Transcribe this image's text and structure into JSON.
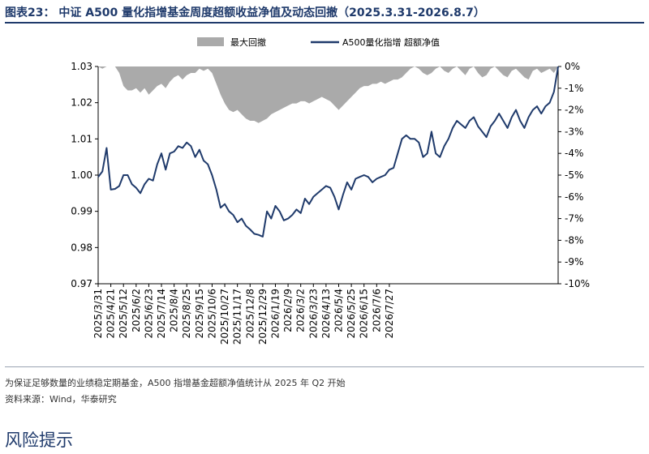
{
  "header": {
    "title": "图表23：  中证 A500 量化指增基金周度超额收益净值及动态回撤（2025.3.31-2026.8.7）"
  },
  "notes": {
    "line1": "为保证足够数量的业绩稳定期基金，A500 指增基金超额净值统计从 2025 年 Q2 开始",
    "line2": "资料来源：Wind，华泰研究"
  },
  "section": {
    "heading": "风险提示"
  },
  "colors": {
    "nav_line": "#1f3a6b",
    "drawdown_area": "#aaaaaa"
  },
  "chart_data": {
    "type": "line",
    "title": "",
    "xlabel": "",
    "ylabel": "",
    "grid": false,
    "legend_position": "top-center",
    "x_tick_labels": [
      "2025/3/31",
      "2025/4/21",
      "2025/5/12",
      "2025/6/2",
      "2025/6/23",
      "2025/7/14",
      "2025/8/4",
      "2025/8/25",
      "2025/9/15",
      "2025/10/6",
      "2025/10/27",
      "2025/11/17",
      "2025/12/8",
      "2025/12/29",
      "2026/1/19",
      "2026/2/9",
      "2026/3/2",
      "2026/3/23",
      "2026/4/13",
      "2026/5/4",
      "2026/5/25",
      "2026/6/15",
      "2026/7/6",
      "2026/7/27"
    ],
    "y_left": {
      "ylim": [
        0.97,
        1.03
      ],
      "ticks": [
        "0.97",
        "0.98",
        "0.99",
        "1.00",
        "1.01",
        "1.02",
        "1.03"
      ]
    },
    "y_right": {
      "ylim": [
        -10,
        0
      ],
      "unit": "%",
      "ticks": [
        "0%",
        "-1%",
        "-2%",
        "-3%",
        "-4%",
        "-5%",
        "-6%",
        "-7%",
        "-8%",
        "-9%",
        "-10%"
      ]
    },
    "series": [
      {
        "name": "最大回撤",
        "axis": "right",
        "kind": "area",
        "points": [
          [
            0,
            0
          ],
          [
            1,
            -0.1
          ],
          [
            2,
            0
          ],
          [
            3,
            0
          ],
          [
            4,
            0
          ],
          [
            5,
            -0.3
          ],
          [
            6,
            -0.9
          ],
          [
            7,
            -1.1
          ],
          [
            8,
            -1.1
          ],
          [
            9,
            -1.0
          ],
          [
            10,
            -1.2
          ],
          [
            11,
            -1.0
          ],
          [
            12,
            -1.3
          ],
          [
            13,
            -1.1
          ],
          [
            14,
            -0.9
          ],
          [
            15,
            -0.8
          ],
          [
            16,
            -1.0
          ],
          [
            17,
            -0.7
          ],
          [
            18,
            -0.5
          ],
          [
            19,
            -0.4
          ],
          [
            20,
            -0.6
          ],
          [
            21,
            -0.4
          ],
          [
            22,
            -0.3
          ],
          [
            23,
            -0.3
          ],
          [
            24,
            -0.1
          ],
          [
            25,
            -0.2
          ],
          [
            26,
            -0.1
          ],
          [
            27,
            -0.3
          ],
          [
            28,
            -0.8
          ],
          [
            29,
            -1.3
          ],
          [
            30,
            -1.7
          ],
          [
            31,
            -2.0
          ],
          [
            32,
            -2.1
          ],
          [
            33,
            -2.0
          ],
          [
            34,
            -2.2
          ],
          [
            35,
            -2.4
          ],
          [
            36,
            -2.5
          ],
          [
            37,
            -2.5
          ],
          [
            38,
            -2.6
          ],
          [
            39,
            -2.5
          ],
          [
            40,
            -2.4
          ],
          [
            41,
            -2.2
          ],
          [
            42,
            -2.1
          ],
          [
            43,
            -2.0
          ],
          [
            44,
            -1.9
          ],
          [
            45,
            -1.8
          ],
          [
            46,
            -1.7
          ],
          [
            47,
            -1.7
          ],
          [
            48,
            -1.6
          ],
          [
            49,
            -1.6
          ],
          [
            50,
            -1.7
          ],
          [
            51,
            -1.6
          ],
          [
            52,
            -1.5
          ],
          [
            53,
            -1.4
          ],
          [
            54,
            -1.5
          ],
          [
            55,
            -1.6
          ],
          [
            56,
            -1.8
          ],
          [
            57,
            -2.0
          ],
          [
            58,
            -1.8
          ],
          [
            59,
            -1.6
          ],
          [
            60,
            -1.4
          ],
          [
            61,
            -1.2
          ],
          [
            62,
            -1.0
          ],
          [
            63,
            -0.9
          ],
          [
            64,
            -0.9
          ],
          [
            65,
            -0.8
          ],
          [
            66,
            -0.8
          ],
          [
            67,
            -0.7
          ],
          [
            68,
            -0.8
          ],
          [
            69,
            -0.7
          ],
          [
            70,
            -0.6
          ],
          [
            71,
            -0.6
          ],
          [
            72,
            -0.5
          ],
          [
            73,
            -0.3
          ],
          [
            74,
            -0.1
          ],
          [
            75,
            0
          ],
          [
            76,
            -0.1
          ],
          [
            77,
            -0.3
          ],
          [
            78,
            -0.4
          ],
          [
            79,
            -0.3
          ],
          [
            80,
            -0.1
          ],
          [
            81,
            0
          ],
          [
            82,
            -0.2
          ],
          [
            83,
            -0.3
          ],
          [
            84,
            -0.1
          ],
          [
            85,
            0
          ],
          [
            86,
            -0.2
          ],
          [
            87,
            -0.4
          ],
          [
            88,
            -0.1
          ],
          [
            89,
            0
          ],
          [
            90,
            -0.3
          ],
          [
            91,
            -0.5
          ],
          [
            92,
            -0.4
          ],
          [
            93,
            -0.1
          ],
          [
            94,
            0
          ],
          [
            95,
            -0.2
          ],
          [
            96,
            -0.4
          ],
          [
            97,
            -0.5
          ],
          [
            98,
            -0.2
          ],
          [
            99,
            -0.1
          ],
          [
            100,
            -0.3
          ],
          [
            101,
            -0.5
          ],
          [
            102,
            -0.6
          ],
          [
            103,
            -0.2
          ],
          [
            104,
            -0.1
          ],
          [
            105,
            -0.3
          ],
          [
            106,
            -0.2
          ],
          [
            107,
            -0.1
          ],
          [
            108,
            -0.3
          ],
          [
            109,
            0
          ]
        ]
      },
      {
        "name": "A500量化指增 超额净值",
        "axis": "left",
        "kind": "line",
        "points": [
          [
            0,
            0.9995
          ],
          [
            1,
            1.001
          ],
          [
            2,
            1.0075
          ],
          [
            3,
            0.996
          ],
          [
            4,
            0.9962
          ],
          [
            5,
            0.997
          ],
          [
            6,
            1.0
          ],
          [
            7,
            1.0
          ],
          [
            8,
            0.9975
          ],
          [
            9,
            0.9965
          ],
          [
            10,
            0.995
          ],
          [
            11,
            0.9975
          ],
          [
            12,
            0.999
          ],
          [
            13,
            0.9985
          ],
          [
            14,
            1.003
          ],
          [
            15,
            1.006
          ],
          [
            16,
            1.0015
          ],
          [
            17,
            1.006
          ],
          [
            18,
            1.0065
          ],
          [
            19,
            1.008
          ],
          [
            20,
            1.0075
          ],
          [
            21,
            1.009
          ],
          [
            22,
            1.008
          ],
          [
            23,
            1.005
          ],
          [
            24,
            1.007
          ],
          [
            25,
            1.004
          ],
          [
            26,
            1.003
          ],
          [
            27,
            1.0
          ],
          [
            28,
            0.996
          ],
          [
            29,
            0.991
          ],
          [
            30,
            0.992
          ],
          [
            31,
            0.99
          ],
          [
            32,
            0.989
          ],
          [
            33,
            0.987
          ],
          [
            34,
            0.988
          ],
          [
            35,
            0.986
          ],
          [
            36,
            0.985
          ],
          [
            37,
            0.9838
          ],
          [
            38,
            0.9835
          ],
          [
            39,
            0.983
          ],
          [
            40,
            0.99
          ],
          [
            41,
            0.988
          ],
          [
            42,
            0.9915
          ],
          [
            43,
            0.99
          ],
          [
            44,
            0.9875
          ],
          [
            45,
            0.988
          ],
          [
            46,
            0.989
          ],
          [
            47,
            0.9905
          ],
          [
            48,
            0.9895
          ],
          [
            49,
            0.9935
          ],
          [
            50,
            0.992
          ],
          [
            51,
            0.994
          ],
          [
            52,
            0.995
          ],
          [
            53,
            0.996
          ],
          [
            54,
            0.997
          ],
          [
            55,
            0.9965
          ],
          [
            56,
            0.994
          ],
          [
            57,
            0.9905
          ],
          [
            58,
            0.9945
          ],
          [
            59,
            0.998
          ],
          [
            60,
            0.996
          ],
          [
            61,
            0.999
          ],
          [
            62,
            0.9995
          ],
          [
            63,
            1.0
          ],
          [
            64,
            0.9995
          ],
          [
            65,
            0.998
          ],
          [
            66,
            0.999
          ],
          [
            67,
            0.9995
          ],
          [
            68,
            1.0
          ],
          [
            69,
            1.0015
          ],
          [
            70,
            1.002
          ],
          [
            71,
            1.006
          ],
          [
            72,
            1.01
          ],
          [
            73,
            1.011
          ],
          [
            74,
            1.01
          ],
          [
            75,
            1.01
          ],
          [
            76,
            1.009
          ],
          [
            77,
            1.005
          ],
          [
            78,
            1.006
          ],
          [
            79,
            1.012
          ],
          [
            80,
            1.006
          ],
          [
            81,
            1.005
          ],
          [
            82,
            1.008
          ],
          [
            83,
            1.01
          ],
          [
            84,
            1.013
          ],
          [
            85,
            1.015
          ],
          [
            86,
            1.014
          ],
          [
            87,
            1.013
          ],
          [
            88,
            1.015
          ],
          [
            89,
            1.016
          ],
          [
            90,
            1.0135
          ],
          [
            91,
            1.012
          ],
          [
            92,
            1.0105
          ],
          [
            93,
            1.0135
          ],
          [
            94,
            1.015
          ],
          [
            95,
            1.017
          ],
          [
            96,
            1.015
          ],
          [
            97,
            1.013
          ],
          [
            98,
            1.016
          ],
          [
            99,
            1.018
          ],
          [
            100,
            1.015
          ],
          [
            101,
            1.013
          ],
          [
            102,
            1.016
          ],
          [
            103,
            1.018
          ],
          [
            104,
            1.019
          ],
          [
            105,
            1.017
          ],
          [
            106,
            1.019
          ],
          [
            107,
            1.02
          ],
          [
            108,
            1.023
          ],
          [
            109,
            1.03
          ]
        ]
      }
    ]
  }
}
